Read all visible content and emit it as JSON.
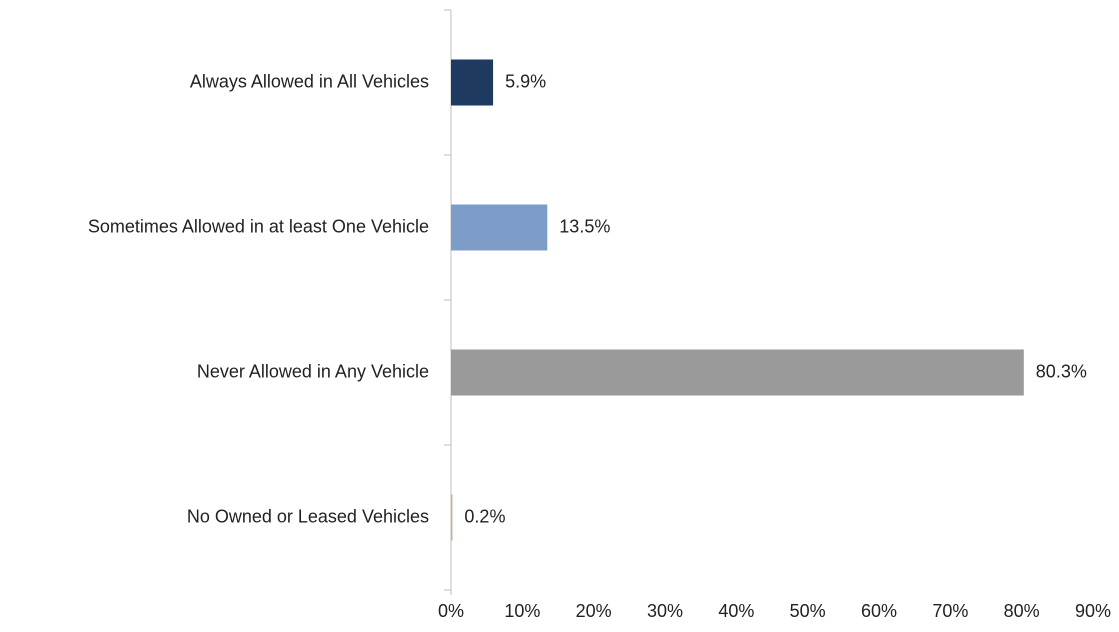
{
  "chart_data": {
    "type": "barh",
    "categories": [
      "Always Allowed in All Vehicles",
      "Sometimes Allowed in at least One Vehicle",
      "Never Allowed in Any Vehicle",
      "No Owned or Leased Vehicles"
    ],
    "values": [
      5.9,
      13.5,
      80.3,
      0.2
    ],
    "value_labels": [
      "5.9%",
      "13.5%",
      "80.3%",
      "0.2%"
    ],
    "colors": [
      "#1f3a60",
      "#7e9cc8",
      "#9a9a9a",
      "#c8b48c"
    ],
    "xlim": [
      0,
      90
    ],
    "xticks": [
      {
        "value": 0,
        "label": "0%"
      },
      {
        "value": 10,
        "label": "10%"
      },
      {
        "value": 20,
        "label": "20%"
      },
      {
        "value": 30,
        "label": "30%"
      },
      {
        "value": 40,
        "label": "40%"
      },
      {
        "value": 50,
        "label": "50%"
      },
      {
        "value": 60,
        "label": "60%"
      },
      {
        "value": 70,
        "label": "70%"
      },
      {
        "value": 80,
        "label": "80%"
      },
      {
        "value": 90,
        "label": "90%"
      }
    ],
    "grid": false
  }
}
